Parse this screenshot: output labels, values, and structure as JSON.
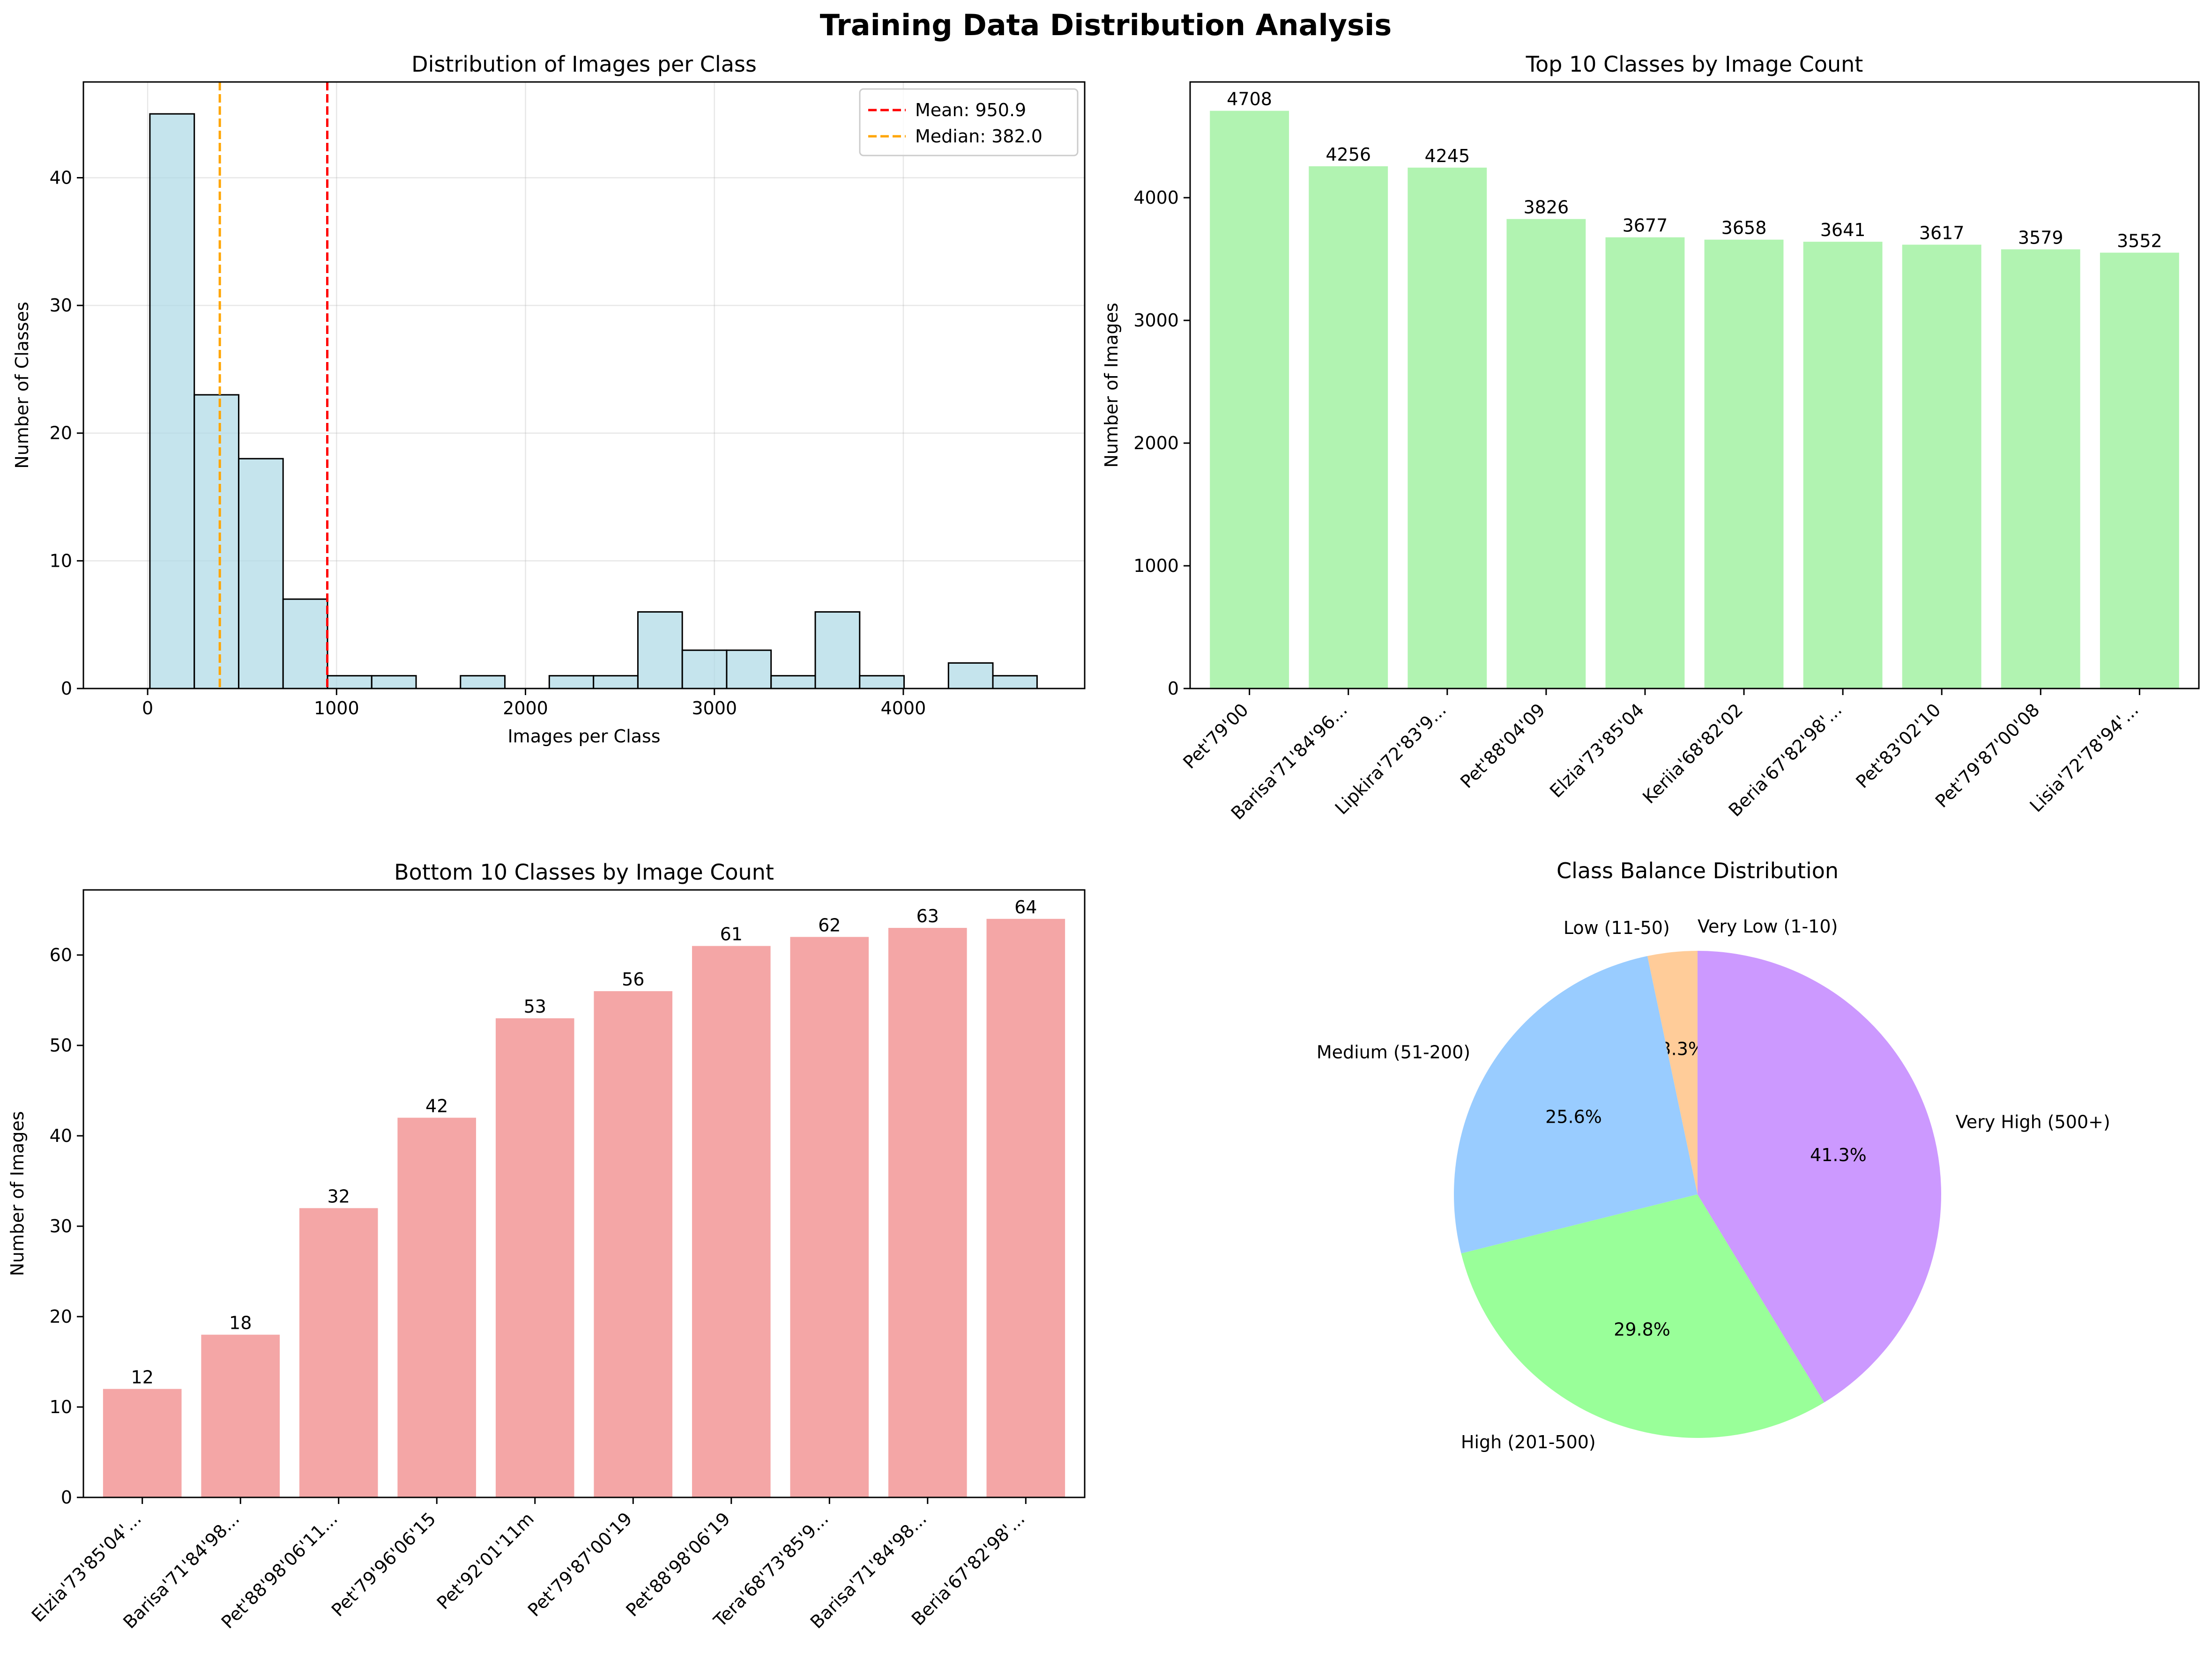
{
  "figure": {
    "suptitle": "Training Data Distribution Analysis"
  },
  "chart_data": [
    {
      "id": "histogram",
      "type": "bar",
      "subtype": "histogram",
      "title": "Distribution of Images per Class",
      "xlabel": "Images per Class",
      "ylabel": "Number of Classes",
      "xlim": [
        -340,
        4960
      ],
      "ylim": [
        0,
        47.5
      ],
      "xticks": [
        0,
        1000,
        2000,
        3000,
        4000
      ],
      "yticks": [
        0,
        10,
        20,
        30,
        40
      ],
      "grid": true,
      "bins": [
        {
          "start": 12,
          "end": 247,
          "count": 45
        },
        {
          "start": 247,
          "end": 482,
          "count": 23
        },
        {
          "start": 482,
          "end": 717,
          "count": 18
        },
        {
          "start": 717,
          "end": 952,
          "count": 7
        },
        {
          "start": 952,
          "end": 1186,
          "count": 1
        },
        {
          "start": 1186,
          "end": 1421,
          "count": 1
        },
        {
          "start": 1421,
          "end": 1656,
          "count": 0
        },
        {
          "start": 1656,
          "end": 1891,
          "count": 1
        },
        {
          "start": 1891,
          "end": 2126,
          "count": 0
        },
        {
          "start": 2126,
          "end": 2360,
          "count": 1
        },
        {
          "start": 2360,
          "end": 2595,
          "count": 1
        },
        {
          "start": 2595,
          "end": 2830,
          "count": 6
        },
        {
          "start": 2830,
          "end": 3065,
          "count": 3
        },
        {
          "start": 3065,
          "end": 3300,
          "count": 3
        },
        {
          "start": 3300,
          "end": 3534,
          "count": 1
        },
        {
          "start": 3534,
          "end": 3769,
          "count": 6
        },
        {
          "start": 3769,
          "end": 4004,
          "count": 1
        },
        {
          "start": 4004,
          "end": 4239,
          "count": 0
        },
        {
          "start": 4239,
          "end": 4474,
          "count": 2
        },
        {
          "start": 4474,
          "end": 4708,
          "count": 1
        }
      ],
      "bar_color": "#add8e6",
      "vlines": [
        {
          "value": 950.9,
          "label": "Mean: 950.9",
          "color": "#ff0000"
        },
        {
          "value": 382.0,
          "label": "Median: 382.0",
          "color": "#ffa500"
        }
      ],
      "legend": "top-right"
    },
    {
      "id": "top10",
      "type": "bar",
      "title": "Top 10 Classes by Image Count",
      "xlabel": "",
      "ylabel": "Number of Images",
      "ylim": [
        0,
        4943
      ],
      "yticks": [
        0,
        1000,
        2000,
        3000,
        4000
      ],
      "grid": false,
      "categories": [
        "Pet'79'00",
        "Barisa'71'84'96...",
        "Lipkira'72'83'9...",
        "Pet'88'04'09",
        "Elzia'73'85'04",
        "Keriia'68'82'02",
        "Beria'67'82'98'...",
        "Pet'83'02'10",
        "Pet'79'87'00'08",
        "Lisia'72'78'94'..."
      ],
      "values": [
        4708,
        4256,
        4245,
        3826,
        3677,
        3658,
        3641,
        3617,
        3579,
        3552
      ],
      "bar_color": "#90ee90"
    },
    {
      "id": "bottom10",
      "type": "bar",
      "title": "Bottom 10 Classes by Image Count",
      "xlabel": "",
      "ylabel": "Number of Images",
      "ylim": [
        0,
        67.2
      ],
      "yticks": [
        0,
        10,
        20,
        30,
        40,
        50,
        60
      ],
      "grid": false,
      "categories": [
        "Elzia'73'85'04'...",
        "Barisa'71'84'98...",
        "Pet'88'98'06'11...",
        "Pet'79'96'06'15",
        "Pet'92'01'11m",
        "Pet'79'87'00'19",
        "Pet'88'98'06'19",
        "Tera'68'73'85'9...",
        "Barisa'71'84'98...",
        "Beria'67'82'98'..."
      ],
      "values": [
        12,
        18,
        32,
        42,
        53,
        56,
        61,
        62,
        63,
        64
      ],
      "bar_color": "#f08080"
    },
    {
      "id": "balance",
      "type": "pie",
      "title": "Class Balance Distribution",
      "start_angle": 90,
      "direction": "counterclockwise",
      "slices": [
        {
          "label": "Very Low (1-10)",
          "value": 0.0,
          "pct": "0.0%",
          "color": "#ff9999"
        },
        {
          "label": "Low (11-50)",
          "value": 3.3,
          "pct": "3.3%",
          "color": "#ffcc99"
        },
        {
          "label": "Medium (51-200)",
          "value": 25.6,
          "pct": "25.6%",
          "color": "#99ccff"
        },
        {
          "label": "High (201-500)",
          "value": 29.8,
          "pct": "29.8%",
          "color": "#99ff99"
        },
        {
          "label": "Very High (500+)",
          "value": 41.3,
          "pct": "41.3%",
          "color": "#cc99ff"
        }
      ]
    }
  ]
}
